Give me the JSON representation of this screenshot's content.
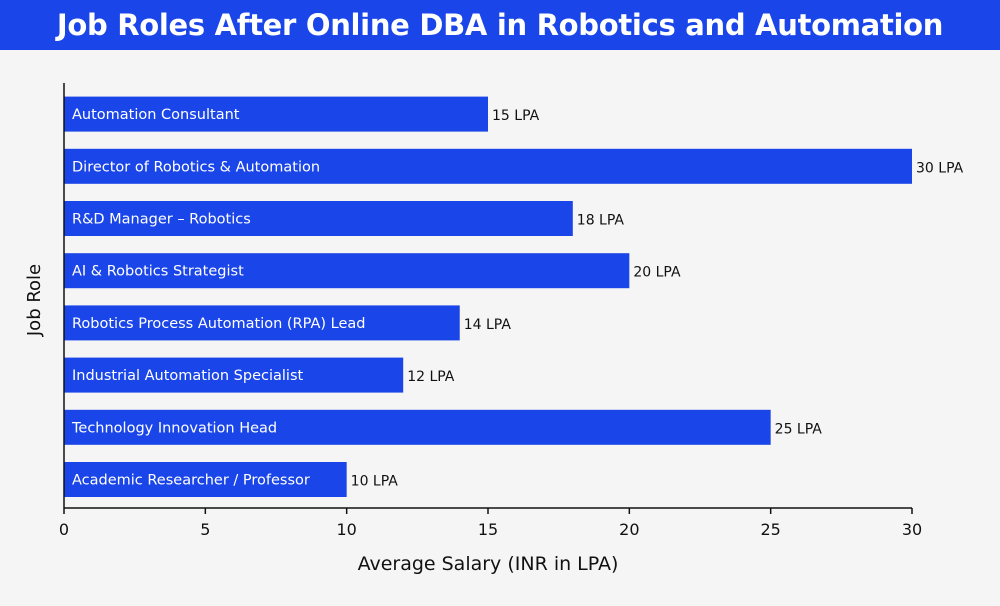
{
  "title": "Job Roles After Online DBA in Robotics and Automation",
  "colors": {
    "title_bg": "#1a45e8",
    "bar": "#1a45e8",
    "background": "#f5f5f5",
    "text": "#111111"
  },
  "chart_data": {
    "type": "bar",
    "orientation": "horizontal",
    "categories": [
      "Automation Consultant",
      "Director of Robotics & Automation",
      "R&D Manager – Robotics",
      "AI & Robotics Strategist",
      "Robotics Process Automation (RPA) Lead",
      "Industrial Automation Specialist",
      "Technology Innovation Head",
      "Academic Researcher / Professor"
    ],
    "values": [
      15,
      30,
      18,
      20,
      14,
      12,
      25,
      10
    ],
    "data_labels": [
      "15 LPA",
      "30 LPA",
      "18 LPA",
      "20 LPA",
      "14 LPA",
      "12 LPA",
      "25 LPA",
      "10 LPA"
    ],
    "xlabel": "Average Salary (INR in LPA)",
    "ylabel": "Job Role",
    "xlim": [
      0,
      30
    ],
    "xticks": [
      0,
      5,
      10,
      15,
      20,
      25,
      30
    ],
    "grid": false
  }
}
